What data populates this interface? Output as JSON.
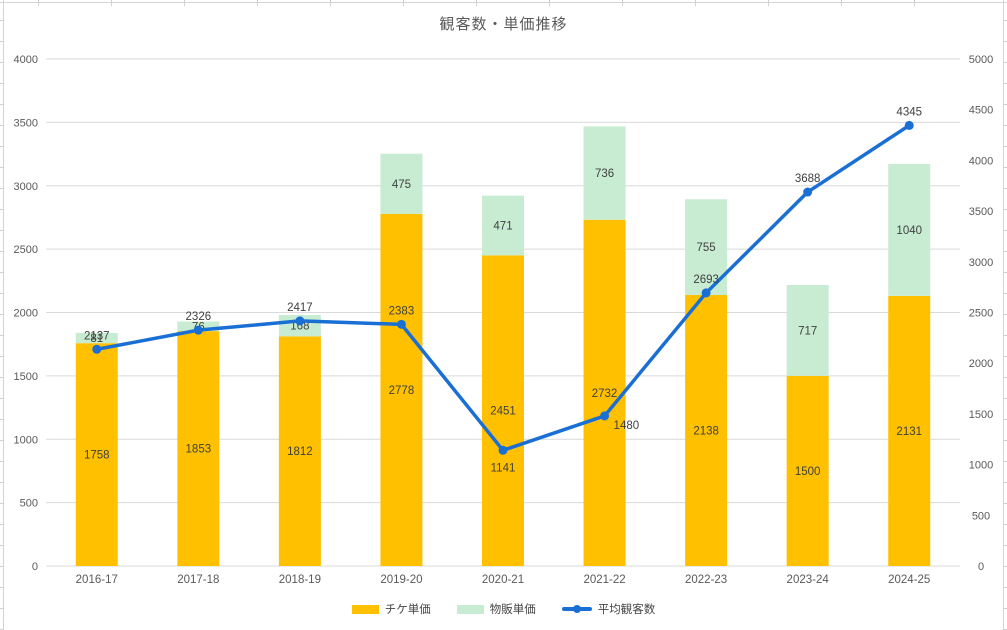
{
  "chart_data": {
    "type": "combo",
    "title": "観客数・単価推移",
    "categories": [
      "2016-17",
      "2017-18",
      "2018-19",
      "2019-20",
      "2020-21",
      "2021-22",
      "2022-23",
      "2023-24",
      "2024-25"
    ],
    "series": [
      {
        "name": "チケ単価",
        "type": "bar",
        "stacked": true,
        "axis": "primary",
        "color": "#FFC000",
        "values": [
          1758,
          1853,
          1812,
          2778,
          2451,
          2732,
          2138,
          1500,
          2131
        ]
      },
      {
        "name": "物販単価",
        "type": "bar",
        "stacked": true,
        "axis": "primary",
        "color": "#C8ECD2",
        "values": [
          81,
          76,
          168,
          475,
          471,
          736,
          755,
          717,
          1040
        ]
      },
      {
        "name": "平均観客数",
        "type": "line",
        "axis": "secondary",
        "color": "#1A6FD4",
        "values": [
          2137,
          2326,
          2417,
          2383,
          1141,
          1480,
          2693,
          3688,
          4345
        ],
        "label_positions": [
          "above",
          "above",
          "above",
          "above",
          "below",
          "below-right",
          "above",
          "above",
          "above"
        ]
      }
    ],
    "axes": {
      "primary_y": {
        "min": 0,
        "max": 4000,
        "step": 500,
        "ticks": [
          0,
          500,
          1000,
          1500,
          2000,
          2500,
          3000,
          3500,
          4000
        ]
      },
      "secondary_y": {
        "min": 0,
        "max": 5000,
        "step": 500,
        "ticks": [
          0,
          500,
          1000,
          1500,
          2000,
          2500,
          3000,
          3500,
          4000,
          4500,
          5000
        ]
      }
    },
    "gridlines": "horizontal",
    "legend_position": "bottom",
    "data_labels": true
  },
  "styles": {
    "gridline": "#D9D9D9",
    "axis_text": "#595959",
    "label_text": "#404040",
    "title_text": "#595959"
  }
}
